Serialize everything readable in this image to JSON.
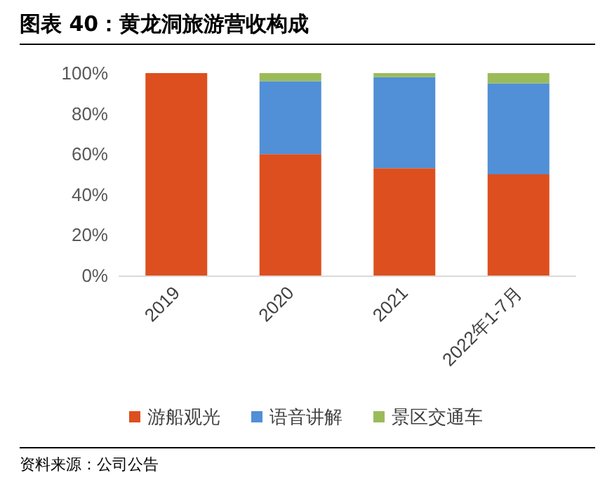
{
  "chart_data": {
    "type": "bar",
    "title": "图表 40：黄龙洞旅游营收构成",
    "stacked": true,
    "categories": [
      "2019",
      "2020",
      "2021",
      "2022年1-7月"
    ],
    "series": [
      {
        "name": "游船观光",
        "color": "#dd4f1e",
        "values": [
          100,
          60,
          53,
          50
        ]
      },
      {
        "name": "语音讲解",
        "color": "#518fd6",
        "values": [
          0,
          36,
          45,
          45
        ]
      },
      {
        "name": "景区交通车",
        "color": "#9bbb59",
        "values": [
          0,
          4,
          2,
          5
        ]
      }
    ],
    "ylim": [
      0,
      100
    ],
    "yticks": [
      {
        "value": 0,
        "label": "0%"
      },
      {
        "value": 20,
        "label": "20%"
      },
      {
        "value": 40,
        "label": "40%"
      },
      {
        "value": 60,
        "label": "60%"
      },
      {
        "value": 80,
        "label": "80%"
      },
      {
        "value": 100,
        "label": "100%"
      }
    ],
    "grid": false,
    "legend": "bottom",
    "annotations": [
      "资料来源：公司公告"
    ]
  }
}
